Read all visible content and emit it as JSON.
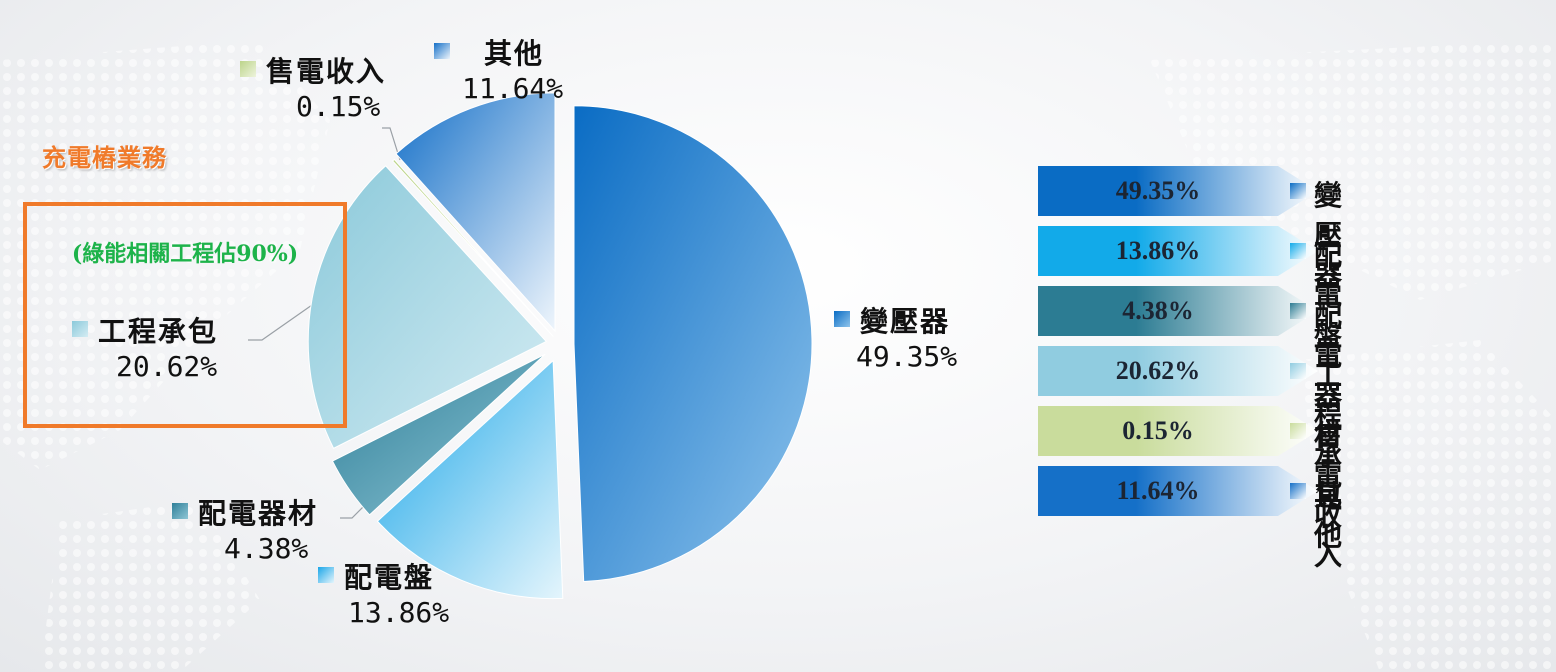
{
  "annotation": {
    "title": "充電樁業務",
    "note": "(綠能相關工程佔90%)",
    "colors": {
      "accent": "#f07a2a",
      "note": "#1db34a"
    }
  },
  "chart_data": {
    "type": "pie",
    "title": "",
    "slices": [
      {
        "label": "變壓器",
        "value": 49.35,
        "pct": "49.35%",
        "color_dark": "#0a6cc4",
        "color_light": "#8fc4ec"
      },
      {
        "label": "配電盤",
        "value": 13.86,
        "pct": "13.86%",
        "color_dark": "#1ba6e8",
        "color_light": "#e4f5fc"
      },
      {
        "label": "配電器材",
        "value": 4.38,
        "pct": "4.38%",
        "color_dark": "#2f7f98",
        "color_light": "#8fc6d6"
      },
      {
        "label": "工程承包",
        "value": 20.62,
        "pct": "20.62%",
        "color_dark": "#8bc9da",
        "color_light": "#d4ecf3"
      },
      {
        "label": "售電收入",
        "value": 0.15,
        "pct": "0.15%",
        "color_dark": "#bcd48a",
        "color_light": "#eef4dc"
      },
      {
        "label": "其他",
        "value": 11.64,
        "pct": "11.64%",
        "color_dark": "#1570c8",
        "color_light": "#eef5fc"
      }
    ],
    "legend": [
      {
        "label": "變壓器",
        "pct": "49.35%",
        "c1": "#0a6cc4",
        "c2": "#ffffff"
      },
      {
        "label": "配電盤",
        "pct": "13.86%",
        "c1": "#12aae9",
        "c2": "#ffffff"
      },
      {
        "label": "配電器材",
        "pct": "4.38%",
        "c1": "#2c7c93",
        "c2": "#ffffff"
      },
      {
        "label": "工程承包",
        "pct": "20.62%",
        "c1": "#90cce0",
        "c2": "#ffffff"
      },
      {
        "label": "售電收入",
        "pct": "0.15%",
        "c1": "#c9dc9c",
        "c2": "#ffffff"
      },
      {
        "label": "其他",
        "pct": "11.64%",
        "c1": "#1570c8",
        "c2": "#ffffff"
      }
    ]
  }
}
